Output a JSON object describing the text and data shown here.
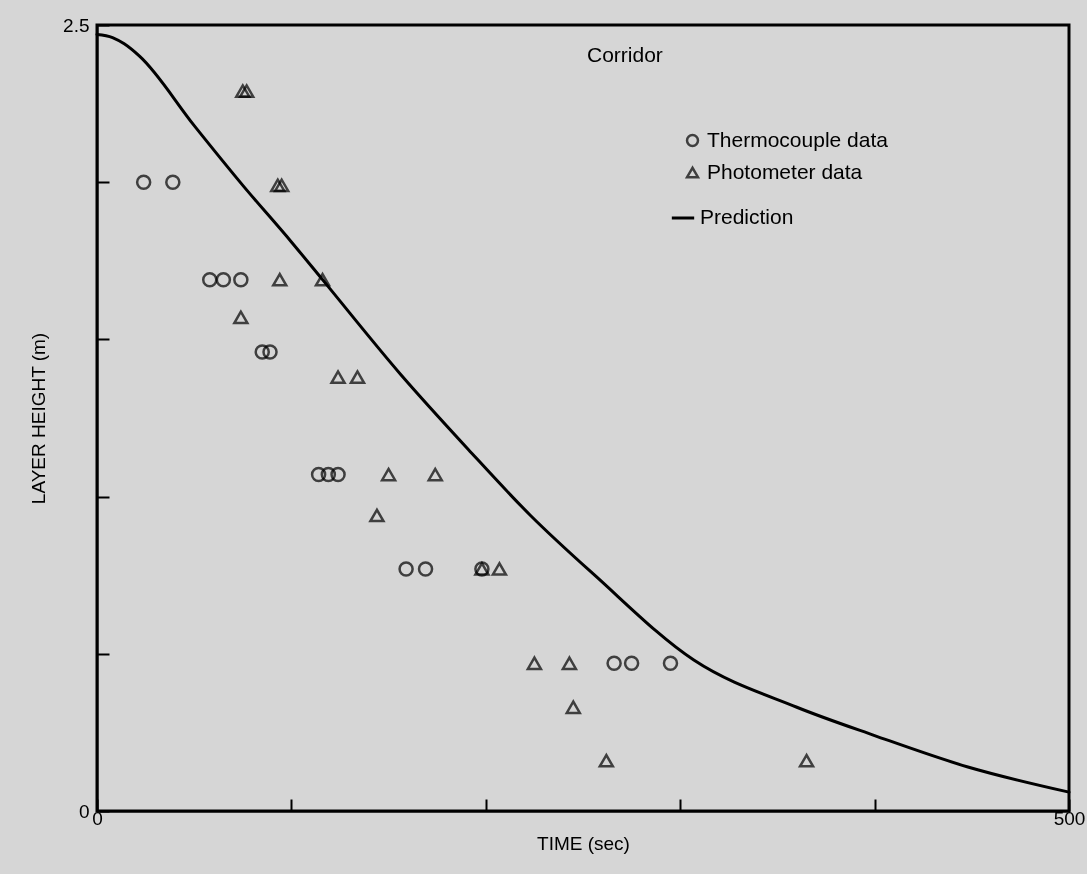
{
  "chart_data": {
    "type": "scatter",
    "title": "Corridor",
    "xlabel": "TIME (sec)",
    "ylabel": "LAYER HEIGHT (m)",
    "xlim": [
      0,
      500
    ],
    "xticks": [
      0,
      {
        "value": 100,
        "label": null
      },
      {
        "value": 200,
        "label": null
      },
      {
        "value": 300,
        "label": null
      },
      {
        "value": 400,
        "label": null
      },
      500
    ],
    "ylim": [
      0,
      2.5
    ],
    "yticks": [
      0,
      {
        "value": 0.5,
        "label": null
      },
      {
        "value": 1.0,
        "label": null
      },
      {
        "value": 1.5,
        "label": null
      },
      {
        "value": 2.0,
        "label": null
      },
      2.5
    ],
    "grid": false,
    "legend": "top right",
    "series": [
      {
        "name": "Thermocouple data",
        "marker": "circle",
        "color": "#000000",
        "x": [
          24,
          39,
          58,
          65,
          74,
          85,
          89,
          114,
          119,
          124,
          159,
          169,
          198,
          266,
          275,
          295
        ],
        "values": [
          2.0,
          2.0,
          1.69,
          1.69,
          1.69,
          1.46,
          1.46,
          1.07,
          1.07,
          1.07,
          0.77,
          0.77,
          0.77,
          0.47,
          0.47,
          0.47
        ]
      },
      {
        "name": "Photometer data",
        "marker": "triangle",
        "color": "#000000",
        "x": [
          75,
          77,
          93,
          95,
          94,
          116,
          74,
          124,
          134,
          150,
          174,
          144,
          198,
          207,
          225,
          243,
          245,
          262,
          365
        ],
        "values": [
          2.29,
          2.29,
          1.99,
          1.99,
          1.69,
          1.69,
          1.57,
          1.38,
          1.38,
          1.07,
          1.07,
          0.94,
          0.77,
          0.77,
          0.47,
          0.47,
          0.33,
          0.16,
          0.16
        ]
      },
      {
        "name": "Prediction",
        "type": "line",
        "marker": "none",
        "line_style": "solid",
        "color": "#000000",
        "x": [
          0,
          8,
          14,
          22,
          50,
          75,
          100,
          116,
          156,
          191,
          223,
          256,
          307,
          360,
          400,
          448,
          500
        ],
        "values": [
          2.47,
          2.46,
          2.44,
          2.4,
          2.18,
          1.99,
          1.81,
          1.69,
          1.39,
          1.15,
          0.94,
          0.75,
          0.48,
          0.33,
          0.24,
          0.14,
          0.06
        ]
      }
    ]
  }
}
